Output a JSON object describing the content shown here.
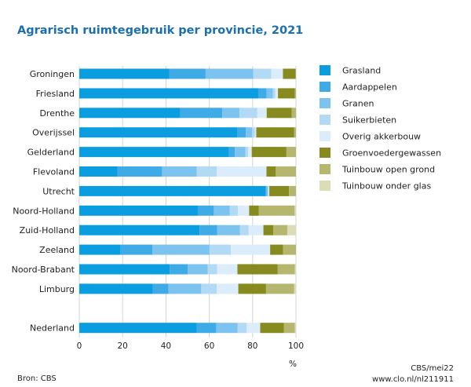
{
  "chart_data": {
    "type": "bar",
    "stacked": true,
    "orientation": "horizontal",
    "title": "Agrarisch ruimtegebruik per provincie, 2021",
    "xlabel": "%",
    "xlim": [
      0,
      100
    ],
    "xticks": [
      "0",
      "20",
      "40",
      "60",
      "80",
      "100"
    ],
    "grid": true,
    "legend_position": "right",
    "categories": [
      "Groningen",
      "Friesland",
      "Drenthe",
      "Overijssel",
      "Gelderland",
      "Flevoland",
      "Utrecht",
      "Noord-Holland",
      "Zuid-Holland",
      "Zeeland",
      "Noord-Brabant",
      "Limburg",
      "",
      "Nederland"
    ],
    "series": [
      {
        "name": "Grasland",
        "color": "#0a9ee0",
        "values": [
          41.5,
          82.6,
          46.6,
          73.1,
          69.0,
          17.7,
          85.9,
          54.7,
          55.5,
          19.1,
          41.7,
          33.9,
          null,
          54.3
        ]
      },
      {
        "name": "Aardappelen",
        "color": "#3eabe6",
        "values": [
          16.8,
          3.9,
          19.4,
          3.8,
          2.8,
          20.5,
          0.6,
          7.4,
          8.1,
          14.7,
          8.4,
          7.3,
          null,
          8.9
        ]
      },
      {
        "name": "Granen",
        "color": "#7cc3ef",
        "values": [
          22.0,
          2.8,
          7.9,
          2.8,
          4.9,
          16.0,
          0.6,
          7.4,
          10.6,
          26.3,
          9.2,
          15.1,
          null,
          9.8
        ]
      },
      {
        "name": "Suikerbieten",
        "color": "#b3daf5",
        "values": [
          8.3,
          1.2,
          8.3,
          1.4,
          1.2,
          9.3,
          0.3,
          3.7,
          4.0,
          9.9,
          4.3,
          7.2,
          null,
          4.3
        ]
      },
      {
        "name": "Overig akkerbouw",
        "color": "#dbedfb",
        "values": [
          5.4,
          1.2,
          4.3,
          0.6,
          1.7,
          22.9,
          0.3,
          5.2,
          6.8,
          18.1,
          9.4,
          9.9,
          null,
          6.2
        ]
      },
      {
        "name": "Groenvoedergewassen",
        "color": "#878a1e",
        "values": [
          5.8,
          7.8,
          11.5,
          17.5,
          16.0,
          4.3,
          9.1,
          4.5,
          4.5,
          6.0,
          18.6,
          12.8,
          null,
          10.9
        ]
      },
      {
        "name": "Tuinbouw open grond",
        "color": "#b6b76f",
        "values": [
          0.2,
          0.5,
          2.0,
          0.8,
          4.4,
          9.3,
          3.2,
          16.5,
          6.5,
          5.9,
          7.9,
          13.0,
          null,
          5.1
        ]
      },
      {
        "name": "Tuinbouw onder glas",
        "color": "#dcdcb6",
        "values": [
          0,
          0,
          0,
          0,
          0,
          0,
          0,
          0.6,
          4.0,
          0,
          0.5,
          0.8,
          null,
          0.5
        ]
      }
    ]
  },
  "footer": {
    "source": "Bron: CBS",
    "credit": "CBS/mei22",
    "url": "www.clo.nl/nl211911"
  }
}
